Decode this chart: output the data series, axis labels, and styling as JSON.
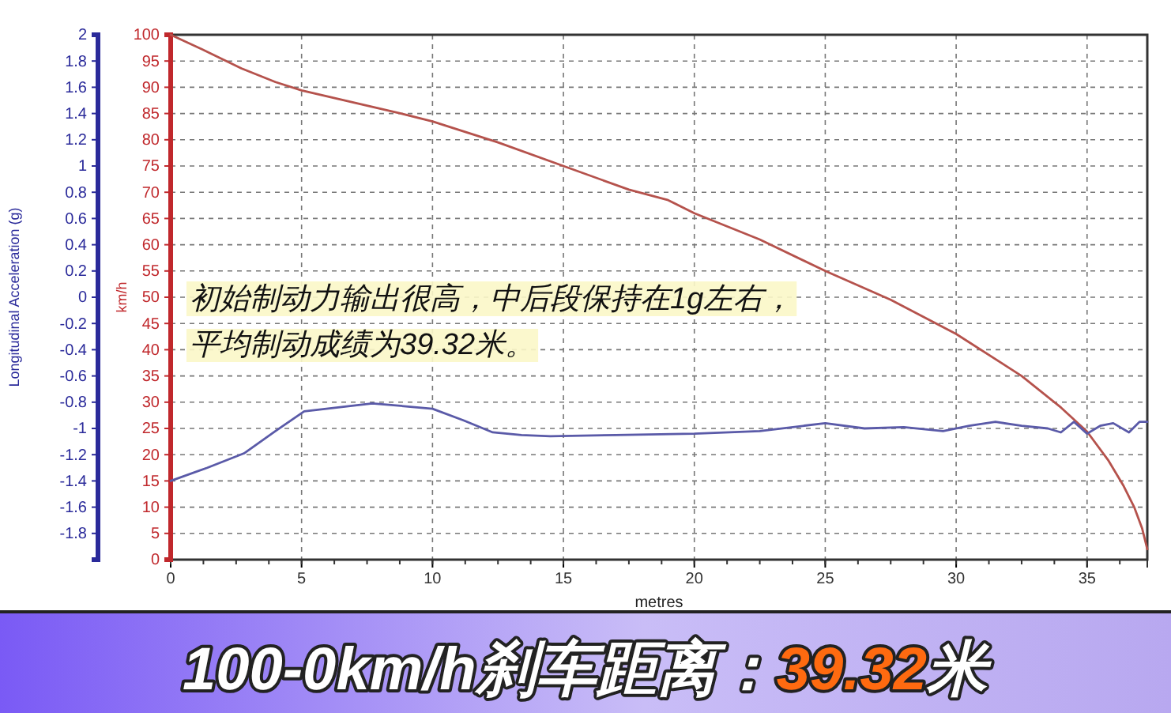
{
  "chart_data": {
    "type": "line",
    "title": "100-0km/h刹车距离：39.32米",
    "xlabel": "metres",
    "ylabel": "km/h",
    "y2label": "Longitudinal Acceleration (g)",
    "annotations": [
      "初始制动力输出很高，中后段保持在1g左右，平均制动成绩为39.32米。"
    ],
    "series": [
      {
        "color": "#b5524c",
        "x": [
          0,
          1.3,
          2.7,
          4,
          5,
          6.2,
          7.5,
          8.8,
          10,
          12.5,
          15,
          17.5,
          19,
          20,
          22.5,
          25,
          27.5,
          30,
          32.5,
          34,
          35,
          35.8,
          36.4,
          36.8,
          37.1,
          37.3
        ],
        "values": [
          100,
          97,
          93.6,
          91,
          89.4,
          88,
          86.5,
          85,
          83.5,
          79.5,
          75,
          70.5,
          68.5,
          66,
          61,
          55,
          49.5,
          43,
          35,
          29,
          24.4,
          19,
          14,
          10,
          6,
          2
        ]
      },
      {
        "color": "#5a5aa8",
        "axis": "y2",
        "x": [
          0,
          1.4,
          2.8,
          4,
          5.1,
          6.4,
          7.7,
          8.9,
          10,
          11.2,
          12.3,
          13.4,
          14.5,
          17,
          20,
          22.5,
          25,
          26.5,
          28,
          29.5,
          30.5,
          31.5,
          32.5,
          33.5,
          34,
          34.5,
          35,
          35.5,
          36,
          36.6,
          37,
          37.3
        ],
        "values": [
          -1.4,
          -1.3,
          -1.19,
          -1.02,
          -0.87,
          -0.84,
          -0.81,
          -0.83,
          -0.85,
          -0.94,
          -1.03,
          -1.05,
          -1.06,
          -1.05,
          -1.04,
          -1.02,
          -0.96,
          -1.0,
          -0.99,
          -1.02,
          -0.98,
          -0.95,
          -0.98,
          -1.0,
          -1.03,
          -0.95,
          -1.04,
          -0.98,
          -0.96,
          -1.03,
          -0.95,
          -0.95
        ]
      }
    ],
    "xlim": [
      0,
      37.3
    ],
    "xticks": [
      0,
      5,
      10,
      15,
      20,
      25,
      30,
      35
    ],
    "ylim": [
      0,
      100
    ],
    "yticks": [
      0,
      5,
      10,
      15,
      20,
      25,
      30,
      35,
      40,
      45,
      50,
      55,
      60,
      65,
      70,
      75,
      80,
      85,
      90,
      95,
      100
    ],
    "y2lim": [
      -2,
      2
    ],
    "y2ticks": [
      -1.8,
      -1.6,
      -1.4,
      -1.2,
      -1,
      -0.8,
      -0.6,
      -0.4,
      -0.2,
      0,
      0.2,
      0.4,
      0.6,
      0.8,
      1,
      1.2,
      1.4,
      1.6,
      1.8,
      2
    ],
    "grid": true,
    "marker": "none",
    "line_style": "solid"
  }
}
